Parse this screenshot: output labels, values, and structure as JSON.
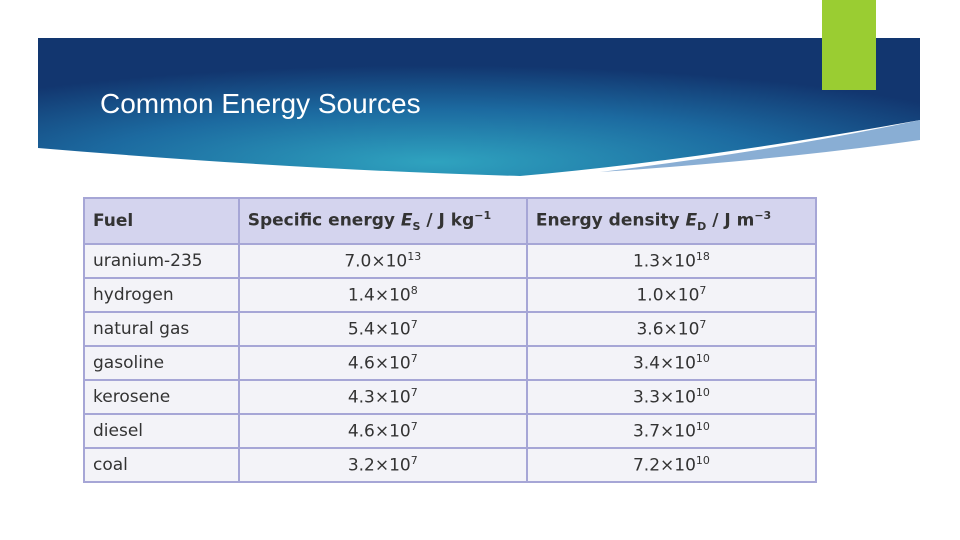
{
  "slide": {
    "title": "Common Energy Sources"
  },
  "table": {
    "header": [
      {
        "text": "Fuel"
      },
      {
        "text": "Specific energy ",
        "symbol": "E",
        "sub": "S",
        "unit": " / J kg",
        "sup": "−1"
      },
      {
        "text": "Energy density ",
        "symbol": "E",
        "sub": "D",
        "unit": " / J m",
        "sup": "−3"
      }
    ],
    "rows": [
      [
        "uranium-235",
        {
          "coef": "7.0×10",
          "exp": "13"
        },
        {
          "coef": "1.3×10",
          "exp": "18"
        }
      ],
      [
        "hydrogen",
        {
          "coef": "1.4×10",
          "exp": "8"
        },
        {
          "coef": "1.0×10",
          "exp": "7"
        }
      ],
      [
        "natural gas",
        {
          "coef": "5.4×10",
          "exp": "7"
        },
        {
          "coef": "3.6×10",
          "exp": "7"
        }
      ],
      [
        "gasoline",
        {
          "coef": "4.6×10",
          "exp": "7"
        },
        {
          "coef": "3.4×10",
          "exp": "10"
        }
      ],
      [
        "kerosene",
        {
          "coef": "4.3×10",
          "exp": "7"
        },
        {
          "coef": "3.3×10",
          "exp": "10"
        }
      ],
      [
        "diesel",
        {
          "coef": "4.6×10",
          "exp": "7"
        },
        {
          "coef": "3.7×10",
          "exp": "10"
        }
      ],
      [
        "coal",
        {
          "coef": "3.2×10",
          "exp": "7"
        },
        {
          "coef": "7.2×10",
          "exp": "10"
        }
      ]
    ]
  }
}
